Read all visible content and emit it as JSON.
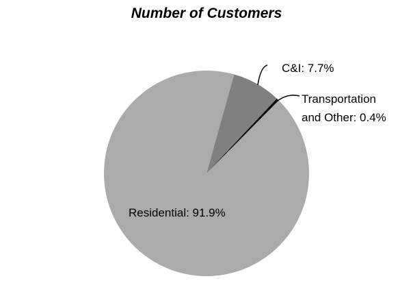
{
  "chart_data": {
    "type": "pie",
    "title": "Number of Customers",
    "values": [
      7.7,
      0.4,
      91.9
    ],
    "value_labels": [
      "C&I: 7.7%",
      "Transportation and Other: 0.4%",
      "Residential: 91.9%"
    ],
    "colors": [
      "#808080",
      "#000000",
      "#ababab"
    ]
  }
}
